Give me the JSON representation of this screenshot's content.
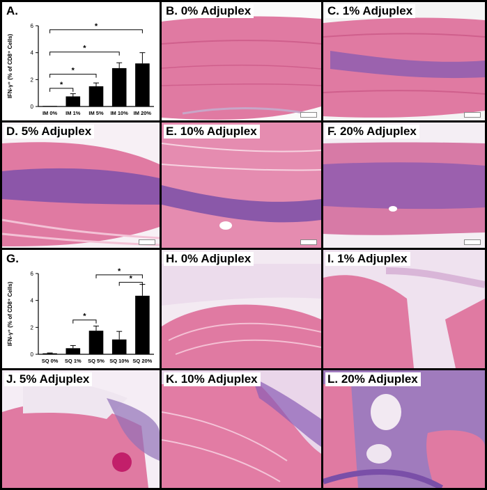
{
  "panels": {
    "A": {
      "label": "A."
    },
    "B": {
      "label": "B.  0% Adjuplex"
    },
    "C": {
      "label": "C. 1% Adjuplex"
    },
    "D": {
      "label": "D. 5% Adjuplex"
    },
    "E": {
      "label": "E. 10% Adjuplex"
    },
    "F": {
      "label": "F. 20% Adjuplex"
    },
    "G": {
      "label": "G."
    },
    "H": {
      "label": "H. 0% Adjuplex"
    },
    "I": {
      "label": "I. 1% Adjuplex"
    },
    "J": {
      "label": "J. 5% Adjuplex"
    },
    "K": {
      "label": "K. 10% Adjuplex"
    },
    "L": {
      "label": "L. 20% Adjuplex"
    }
  },
  "colors": {
    "muscle": "#e0709a",
    "muscle_light": "#f0a6c4",
    "infiltrate": "#7a4fa8",
    "stroma": "#e8d4ea",
    "fat": "#f6eef6"
  },
  "chart_data": [
    {
      "type": "bar",
      "panel": "A",
      "categories": [
        "IM 0%",
        "IM 1%",
        "IM 5%",
        "IM 10%",
        "IM 20%"
      ],
      "values": [
        0.0,
        0.75,
        1.5,
        2.85,
        3.2
      ],
      "errors": [
        0.0,
        0.2,
        0.25,
        0.4,
        0.8
      ],
      "ylabel": "IFN-γ⁺ (% of CD8⁺ Cells)",
      "yticks": [
        "0",
        "2",
        "4",
        "6"
      ],
      "ylim": [
        0,
        6
      ],
      "significance": [
        {
          "from": 0,
          "to": 1,
          "label": "*"
        },
        {
          "from": 0,
          "to": 2,
          "label": "*"
        },
        {
          "from": 0,
          "to": 3,
          "label": "*"
        },
        {
          "from": 0,
          "to": 4,
          "label": "*"
        }
      ]
    },
    {
      "type": "bar",
      "panel": "G",
      "categories": [
        "SQ 0%",
        "SQ 1%",
        "SQ 5%",
        "SQ 10%",
        "SQ 20%"
      ],
      "values": [
        0.07,
        0.45,
        1.75,
        1.1,
        4.35
      ],
      "errors": [
        0.03,
        0.2,
        0.35,
        0.6,
        0.85
      ],
      "ylabel": "IFN-γ⁺ (% of CD8⁺ Cells)",
      "yticks": [
        "0",
        "2",
        "4",
        "6"
      ],
      "ylim": [
        0,
        6
      ],
      "significance": [
        {
          "from": 1,
          "to": 2,
          "label": "*"
        },
        {
          "from": 2,
          "to": 4,
          "label": "*"
        },
        {
          "from": 3,
          "to": 4,
          "label": "*"
        }
      ]
    }
  ]
}
